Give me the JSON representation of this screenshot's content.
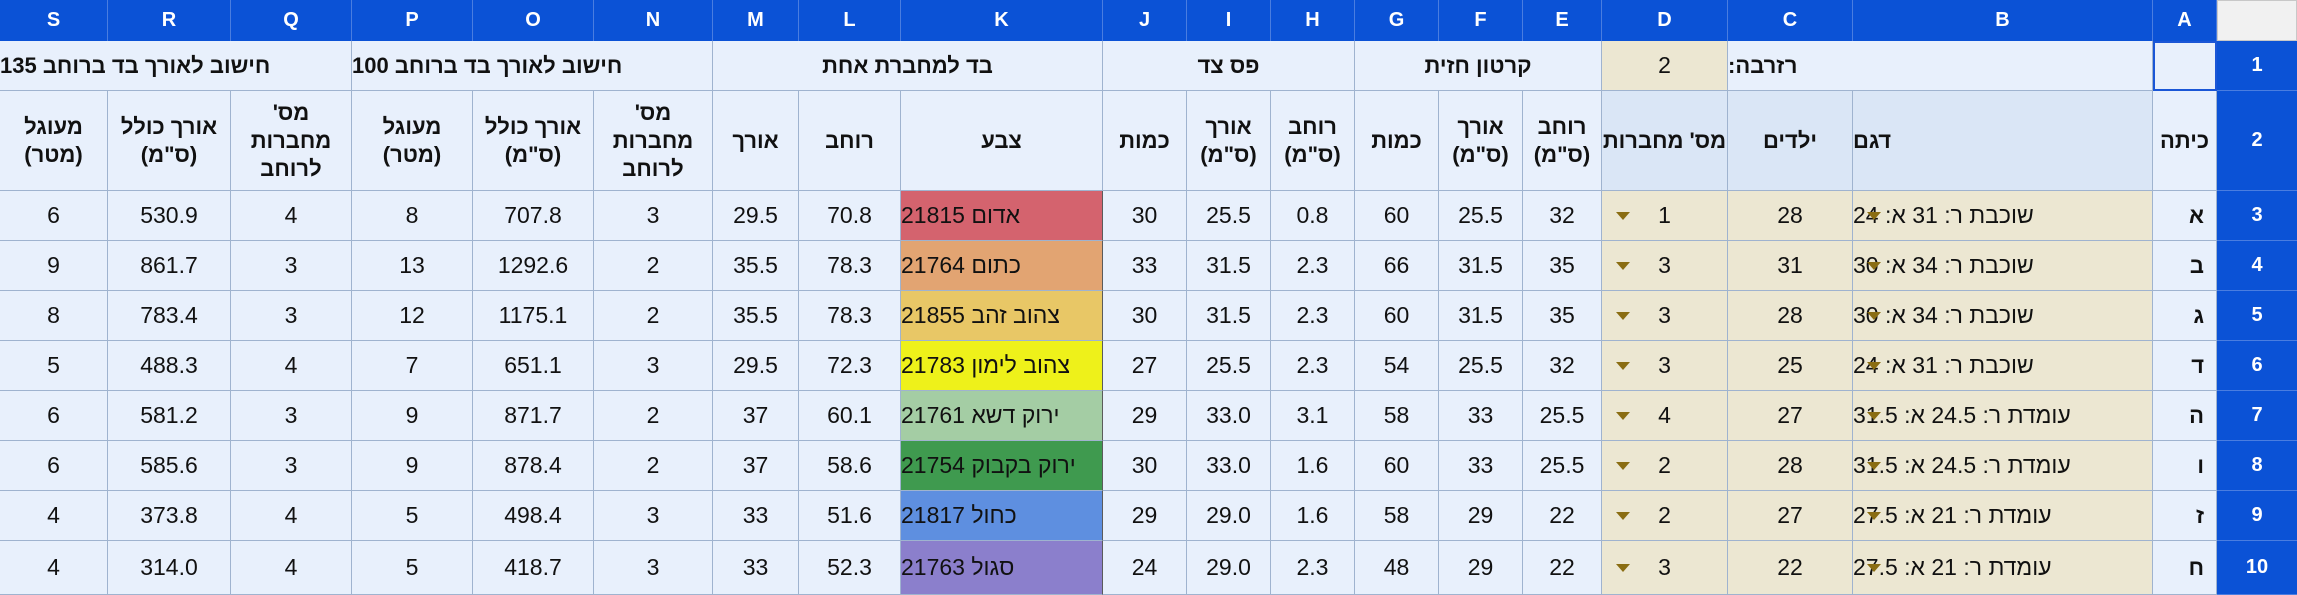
{
  "columns": [
    "S",
    "R",
    "Q",
    "P",
    "O",
    "N",
    "M",
    "L",
    "K",
    "J",
    "I",
    "H",
    "G",
    "F",
    "E",
    "D",
    "C",
    "B",
    "A"
  ],
  "row_numbers": [
    "1",
    "2",
    "3",
    "4",
    "5",
    "6",
    "7",
    "8",
    "9",
    "10"
  ],
  "row1": {
    "calc_135": "חישוב לאורך בד ברוחב 135",
    "calc_100": "חישוב לאורך בד ברוחב 100",
    "fabric_per_notebook": "בד למחברת אחת",
    "side_strip": "פס צד",
    "hard_cardboard": "קרטון חזית",
    "reserve_value": "2",
    "reserve_label": "רזרבה:"
  },
  "row2": {
    "S": "מעוגל (מטר)",
    "R": "אורך כולל (ס\"מ)",
    "Q": "מס' מחברות לרוחב",
    "P": "מעוגל (מטר)",
    "O": "אורך כולל (ס\"מ)",
    "N": "מס' מחברות לרוחב",
    "M": "אורך",
    "L": "רוחב",
    "K": "צבע",
    "J": "כמות",
    "I": "אורך (ס\"מ)",
    "H": "רוחב (ס\"מ)",
    "G": "כמות",
    "F": "אורך (ס\"מ)",
    "E": "רוחב (ס\"מ)",
    "D": "מס' מחברות",
    "C": "ילדים",
    "B": "דגם",
    "A": "כיתה"
  },
  "rows": [
    {
      "S": "6",
      "R": "530.9",
      "Q": "4",
      "P": "8",
      "O": "707.8",
      "N": "3",
      "M": "29.5",
      "L": "70.8",
      "K": "אדום 21815",
      "J": "30",
      "I": "25.5",
      "H": "0.8",
      "G": "60",
      "F": "25.5",
      "E": "32",
      "D": "1",
      "C": "28",
      "B": "שוכבת ר: 31 א: 24",
      "A": "א",
      "color": "#d4636e"
    },
    {
      "S": "9",
      "R": "861.7",
      "Q": "3",
      "P": "13",
      "O": "1292.6",
      "N": "2",
      "M": "35.5",
      "L": "78.3",
      "K": "כתום 21764",
      "J": "33",
      "I": "31.5",
      "H": "2.3",
      "G": "66",
      "F": "31.5",
      "E": "35",
      "D": "3",
      "C": "31",
      "B": "שוכבת ר: 34 א: 30",
      "A": "ב",
      "color": "#e2a472"
    },
    {
      "S": "8",
      "R": "783.4",
      "Q": "3",
      "P": "12",
      "O": "1175.1",
      "N": "2",
      "M": "35.5",
      "L": "78.3",
      "K": "צהוב זהב 21855",
      "J": "30",
      "I": "31.5",
      "H": "2.3",
      "G": "60",
      "F": "31.5",
      "E": "35",
      "D": "3",
      "C": "28",
      "B": "שוכבת ר: 34 א: 30",
      "A": "ג",
      "color": "#e8c766"
    },
    {
      "S": "5",
      "R": "488.3",
      "Q": "4",
      "P": "7",
      "O": "651.1",
      "N": "3",
      "M": "29.5",
      "L": "72.3",
      "K": "צהוב לימון 21783",
      "J": "27",
      "I": "25.5",
      "H": "2.3",
      "G": "54",
      "F": "25.5",
      "E": "32",
      "D": "3",
      "C": "25",
      "B": "שוכבת ר: 31 א: 24",
      "A": "ד",
      "color": "#eef11a"
    },
    {
      "S": "6",
      "R": "581.2",
      "Q": "3",
      "P": "9",
      "O": "871.7",
      "N": "2",
      "M": "37",
      "L": "60.1",
      "K": "ירוק דשא 21761",
      "J": "29",
      "I": "33.0",
      "H": "3.1",
      "G": "58",
      "F": "33",
      "E": "25.5",
      "D": "4",
      "C": "27",
      "B": "עומדת ר: 24.5 א: 31.5",
      "A": "ה",
      "color": "#a4cda4"
    },
    {
      "S": "6",
      "R": "585.6",
      "Q": "3",
      "P": "9",
      "O": "878.4",
      "N": "2",
      "M": "37",
      "L": "58.6",
      "K": "ירוק בקבוק 21754",
      "J": "30",
      "I": "33.0",
      "H": "1.6",
      "G": "60",
      "F": "33",
      "E": "25.5",
      "D": "2",
      "C": "28",
      "B": "עומדת ר: 24.5 א: 31.5",
      "A": "ו",
      "color": "#3f9a4f"
    },
    {
      "S": "4",
      "R": "373.8",
      "Q": "4",
      "P": "5",
      "O": "498.4",
      "N": "3",
      "M": "33",
      "L": "51.6",
      "K": "כחול 21817",
      "J": "29",
      "I": "29.0",
      "H": "1.6",
      "G": "58",
      "F": "29",
      "E": "22",
      "D": "2",
      "C": "27",
      "B": "עומדת ר: 21 א: 27.5",
      "A": "ז",
      "color": "#5e8fe0"
    },
    {
      "S": "4",
      "R": "314.0",
      "Q": "4",
      "P": "5",
      "O": "418.7",
      "N": "3",
      "M": "33",
      "L": "52.3",
      "K": "סגול 21763",
      "J": "24",
      "I": "29.0",
      "H": "2.3",
      "G": "48",
      "F": "29",
      "E": "22",
      "D": "3",
      "C": "22",
      "B": "עומדת ר: 21 א: 27.5",
      "A": "ח",
      "color": "#8b7fcc"
    }
  ]
}
